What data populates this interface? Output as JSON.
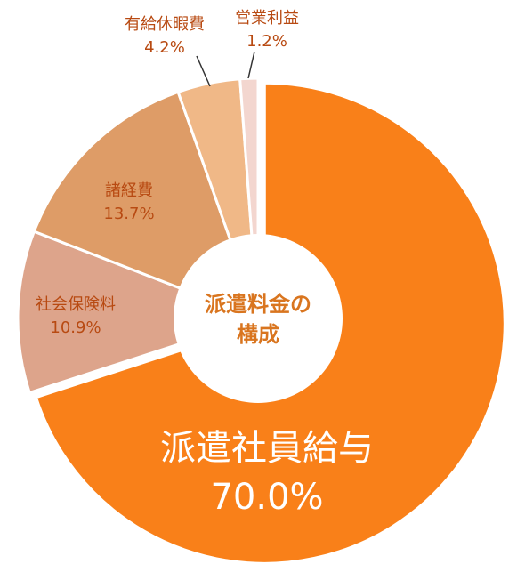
{
  "chart_data": {
    "type": "pie",
    "center_text": [
      "派遣料金の",
      "構成"
    ],
    "slices": [
      {
        "label": "派遣社員給与",
        "value": 70.0,
        "value_text": "70.0%",
        "color": "#F98019"
      },
      {
        "label": "社会保険料",
        "value": 10.9,
        "value_text": "10.9%",
        "color": "#DDA48B"
      },
      {
        "label": "諸経費",
        "value": 13.7,
        "value_text": "13.7%",
        "color": "#DE9C67"
      },
      {
        "label": "有給休暇費",
        "value": 4.2,
        "value_text": "4.2%",
        "color": "#F0B887"
      },
      {
        "label": "営業利益",
        "value": 1.2,
        "value_text": "1.2%",
        "color": "#F3D6CF"
      }
    ],
    "label_color": "#B84A12",
    "center_text_color": "#D9751F",
    "big_label_color": "#ffffff"
  }
}
